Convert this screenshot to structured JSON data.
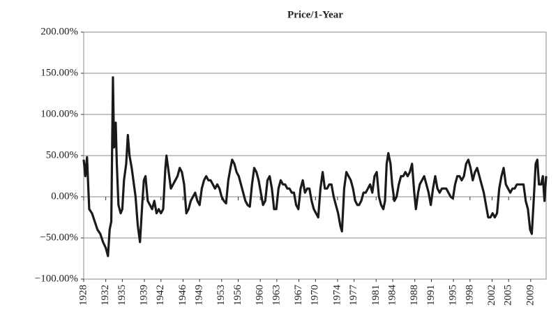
{
  "chart_data": {
    "type": "line",
    "title": "Price/1-Year",
    "color": "#1a1a1a",
    "grid": true,
    "xlim": [
      1928,
      2011.8
    ],
    "xticks": [
      1928,
      1932,
      1935,
      1939,
      1942,
      1946,
      1949,
      1953,
      1956,
      1960,
      1963,
      1967,
      1970,
      1974,
      1977,
      1981,
      1984,
      1988,
      1991,
      1995,
      1998,
      2002,
      2005,
      2009
    ],
    "ylim": [
      -100,
      200
    ],
    "yticks": [
      {
        "value": -100,
        "label": "−100.00%"
      },
      {
        "value": -50,
        "label": "−50.00%"
      },
      {
        "value": 0,
        "label": "0.00%"
      },
      {
        "value": 50,
        "label": "50.00%"
      },
      {
        "value": 100,
        "label": "100.00%"
      },
      {
        "value": 150,
        "label": "150.00%"
      },
      {
        "value": 200,
        "label": "200.00%"
      }
    ],
    "x": [
      1928.0,
      1928.3,
      1928.6,
      1929.0,
      1929.5,
      1930.0,
      1930.5,
      1931.0,
      1931.5,
      1932.0,
      1932.4,
      1932.7,
      1933.0,
      1933.3,
      1933.5,
      1933.8,
      1934.0,
      1934.3,
      1934.7,
      1935.0,
      1935.3,
      1935.7,
      1936.0,
      1936.3,
      1936.7,
      1937.0,
      1937.4,
      1937.8,
      1938.2,
      1938.6,
      1938.9,
      1939.2,
      1939.6,
      1940.0,
      1940.4,
      1940.8,
      1941.2,
      1941.6,
      1942.0,
      1942.4,
      1942.8,
      1943.0,
      1943.4,
      1943.8,
      1944.2,
      1944.6,
      1945.0,
      1945.4,
      1945.8,
      1946.2,
      1946.6,
      1947.0,
      1947.4,
      1947.8,
      1948.2,
      1948.6,
      1949.0,
      1949.4,
      1949.8,
      1950.2,
      1950.6,
      1951.0,
      1951.4,
      1951.8,
      1952.2,
      1952.6,
      1953.0,
      1953.4,
      1953.8,
      1954.2,
      1954.6,
      1954.9,
      1955.3,
      1955.7,
      1956.1,
      1956.5,
      1956.9,
      1957.3,
      1957.7,
      1958.1,
      1958.5,
      1958.9,
      1959.3,
      1959.7,
      1960.1,
      1960.5,
      1960.9,
      1961.3,
      1961.7,
      1962.1,
      1962.5,
      1962.9,
      1963.3,
      1963.7,
      1964.1,
      1964.5,
      1964.9,
      1965.3,
      1965.7,
      1966.1,
      1966.5,
      1966.9,
      1967.3,
      1967.7,
      1968.1,
      1968.5,
      1968.9,
      1969.3,
      1969.7,
      1970.1,
      1970.5,
      1970.9,
      1971.3,
      1971.7,
      1972.1,
      1972.5,
      1972.9,
      1973.3,
      1973.7,
      1974.1,
      1974.5,
      1974.8,
      1975.2,
      1975.6,
      1976.0,
      1976.4,
      1976.8,
      1977.2,
      1977.6,
      1977.9,
      1978.3,
      1978.7,
      1979.1,
      1979.5,
      1979.9,
      1980.3,
      1980.7,
      1981.1,
      1981.5,
      1981.9,
      1982.3,
      1982.6,
      1982.9,
      1983.2,
      1983.6,
      1983.9,
      1984.3,
      1984.7,
      1985.1,
      1985.5,
      1985.9,
      1986.3,
      1986.7,
      1987.1,
      1987.5,
      1987.9,
      1988.2,
      1988.6,
      1988.9,
      1989.3,
      1989.7,
      1990.1,
      1990.5,
      1990.9,
      1991.3,
      1991.7,
      1992.1,
      1992.5,
      1992.9,
      1993.3,
      1993.7,
      1994.1,
      1994.5,
      1994.9,
      1995.3,
      1995.7,
      1996.1,
      1996.5,
      1996.9,
      1997.3,
      1997.7,
      1998.1,
      1998.5,
      1998.9,
      1999.3,
      1999.7,
      2000.1,
      2000.5,
      2000.9,
      2001.3,
      2001.7,
      2002.1,
      2002.5,
      2002.9,
      2003.3,
      2003.7,
      2004.1,
      2004.5,
      2004.9,
      2005.3,
      2005.7,
      2006.1,
      2006.5,
      2006.9,
      2007.3,
      2007.7,
      2008.1,
      2008.5,
      2008.9,
      2009.2,
      2009.5,
      2009.9,
      2010.2,
      2010.5,
      2010.9,
      2011.2,
      2011.5,
      2011.8
    ],
    "values": [
      45,
      25,
      48,
      -15,
      -20,
      -30,
      -40,
      -45,
      -55,
      -62,
      -72,
      -40,
      -30,
      145,
      60,
      90,
      40,
      -10,
      -20,
      -15,
      20,
      40,
      75,
      50,
      35,
      20,
      0,
      -35,
      -55,
      -10,
      20,
      25,
      -5,
      -10,
      -15,
      -5,
      -20,
      -15,
      -20,
      -15,
      35,
      50,
      30,
      10,
      15,
      20,
      25,
      35,
      30,
      15,
      -20,
      -15,
      -5,
      0,
      5,
      -5,
      -10,
      10,
      20,
      25,
      20,
      20,
      15,
      10,
      15,
      10,
      0,
      -5,
      -8,
      20,
      35,
      45,
      40,
      30,
      25,
      15,
      5,
      -5,
      -10,
      -12,
      15,
      35,
      30,
      20,
      5,
      -10,
      -5,
      20,
      25,
      10,
      -15,
      -15,
      10,
      20,
      15,
      15,
      10,
      10,
      5,
      5,
      -10,
      -15,
      10,
      20,
      5,
      10,
      10,
      -5,
      -15,
      -20,
      -25,
      10,
      30,
      10,
      10,
      15,
      15,
      0,
      -10,
      -20,
      -35,
      -42,
      10,
      30,
      25,
      20,
      10,
      -5,
      -10,
      -10,
      -5,
      5,
      5,
      10,
      15,
      5,
      25,
      30,
      0,
      -10,
      -15,
      -5,
      40,
      53,
      40,
      15,
      -5,
      0,
      15,
      25,
      25,
      30,
      25,
      30,
      40,
      5,
      -15,
      5,
      15,
      20,
      25,
      15,
      5,
      -10,
      10,
      25,
      10,
      5,
      10,
      10,
      10,
      5,
      0,
      -2,
      15,
      25,
      25,
      20,
      25,
      40,
      45,
      35,
      20,
      30,
      35,
      25,
      15,
      5,
      -10,
      -25,
      -25,
      -20,
      -25,
      -20,
      10,
      25,
      35,
      15,
      10,
      5,
      10,
      10,
      15,
      15,
      15,
      15,
      -5,
      -15,
      -40,
      -45,
      -10,
      40,
      45,
      15,
      15,
      25,
      -5,
      25
    ]
  }
}
